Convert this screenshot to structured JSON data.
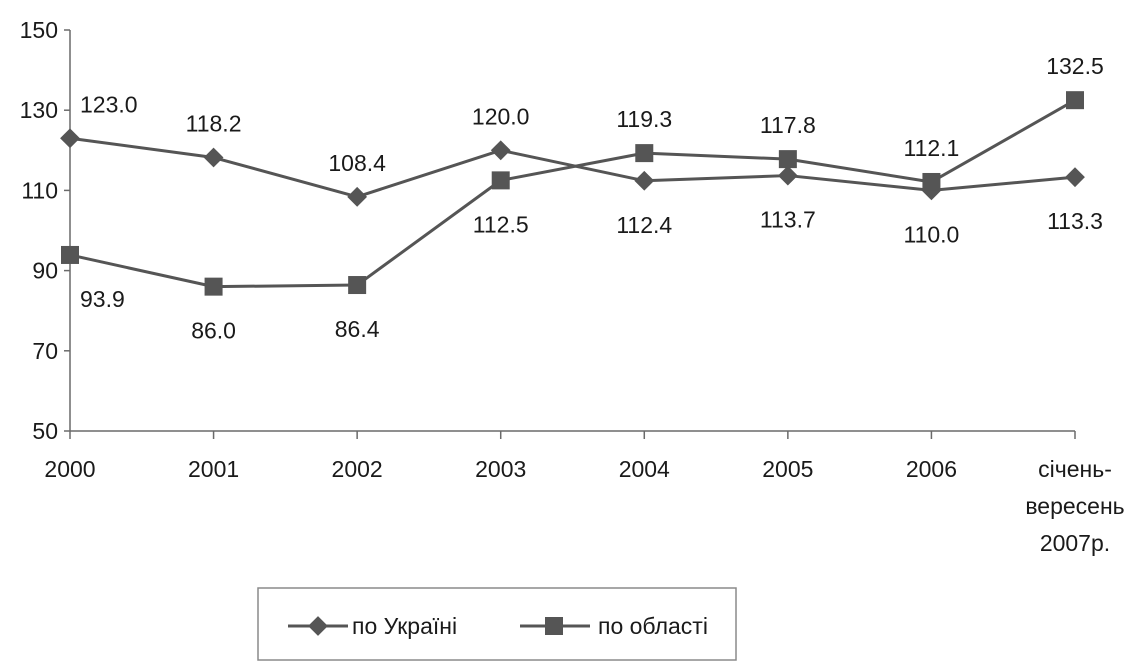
{
  "chart_data": {
    "type": "line",
    "title": "",
    "xlabel": "",
    "ylabel": "",
    "categories": [
      "2000",
      "2001",
      "2002",
      "2003",
      "2004",
      "2005",
      "2006",
      "січень-вересень 2007р."
    ],
    "category_lines": [
      [
        "2000"
      ],
      [
        "2001"
      ],
      [
        "2002"
      ],
      [
        "2003"
      ],
      [
        "2004"
      ],
      [
        "2005"
      ],
      [
        "2006"
      ],
      [
        "січень-",
        "вересень",
        "2007р."
      ]
    ],
    "ylim": [
      50,
      150
    ],
    "yticks": [
      50,
      70,
      90,
      110,
      130,
      150
    ],
    "ytick_labels": [
      "50",
      "70",
      "90",
      "110",
      "130",
      "150"
    ],
    "grid": false,
    "legend_position": "bottom",
    "series": [
      {
        "name": "по Україні",
        "marker": "diamond",
        "color": "#555555",
        "values": [
          123.0,
          118.2,
          108.4,
          120.0,
          112.4,
          113.7,
          110.0,
          113.3
        ],
        "labels": [
          "123.0",
          "118.2",
          "108.4",
          "120.0",
          "112.4",
          "113.7",
          "110.0",
          "113.3"
        ],
        "label_position": [
          "above",
          "above",
          "above",
          "above",
          "below",
          "below",
          "below",
          "below"
        ]
      },
      {
        "name": "по області",
        "marker": "square",
        "color": "#555555",
        "values": [
          93.9,
          86.0,
          86.4,
          112.5,
          119.3,
          117.8,
          112.1,
          132.5
        ],
        "labels": [
          "93.9",
          "86.0",
          "86.4",
          "112.5",
          "119.3",
          "117.8",
          "112.1",
          "132.5"
        ],
        "label_position": [
          "below",
          "below",
          "below",
          "below",
          "above",
          "above",
          "above",
          "above"
        ]
      }
    ]
  }
}
